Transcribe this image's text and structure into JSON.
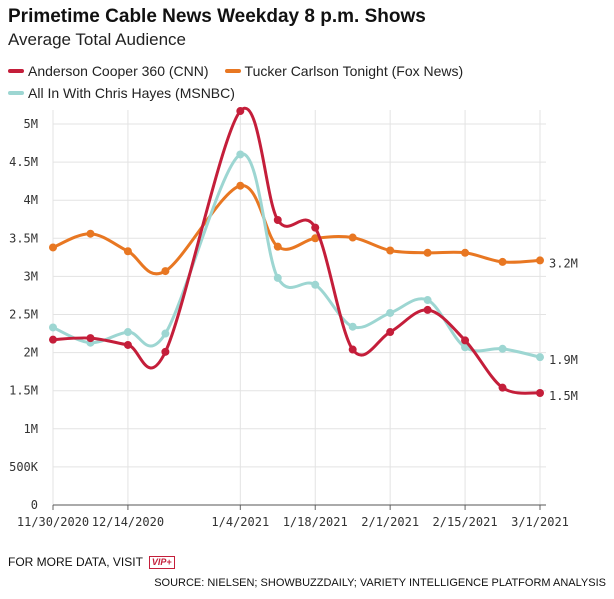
{
  "header": {
    "title": "Primetime Cable News Weekday 8 p.m. Shows",
    "subtitle": "Average Total Audience"
  },
  "legend": [
    {
      "label": "Anderson Cooper 360 (CNN)",
      "color": "#c41e3a"
    },
    {
      "label": "Tucker Carlson Tonight (Fox News)",
      "color": "#e87722"
    },
    {
      "label": "All In With Chris Hayes (MSNBC)",
      "color": "#9dd6d2"
    }
  ],
  "footer": {
    "more_data": "FOR MORE DATA, VISIT",
    "badge": "VIP+",
    "source": "SOURCE: NIELSEN; SHOWBUZZDAILY; VARIETY INTELLIGENCE PLATFORM ANALYSIS"
  },
  "chart_data": {
    "type": "line",
    "x": [
      "2020-11-30",
      "2020-12-07",
      "2020-12-14",
      "2020-12-21",
      "2021-01-04",
      "2021-01-11",
      "2021-01-18",
      "2021-01-25",
      "2021-02-01",
      "2021-02-08",
      "2021-02-15",
      "2021-02-22",
      "2021-03-01"
    ],
    "x_ticks": [
      "11/30/2020",
      "12/14/2020",
      "1/4/2021",
      "1/18/2021",
      "2/1/2021",
      "2/15/2021",
      "3/1/2021"
    ],
    "y_ticks": [
      "0",
      "500K",
      "1M",
      "1.5M",
      "2M",
      "2.5M",
      "3M",
      "3.5M",
      "4M",
      "4.5M",
      "5M"
    ],
    "ylim": [
      0,
      5000000
    ],
    "grid": true,
    "legend_position": "top",
    "series": [
      {
        "name": "Anderson Cooper 360 (CNN)",
        "color": "#c41e3a",
        "values": [
          2170000,
          2190000,
          2100000,
          2010000,
          5170000,
          3740000,
          3640000,
          2040000,
          2270000,
          2560000,
          2160000,
          1540000,
          1470000
        ],
        "end_label": "1.5M"
      },
      {
        "name": "Tucker Carlson Tonight (Fox News)",
        "color": "#e87722",
        "values": [
          3380000,
          3560000,
          3330000,
          3070000,
          4190000,
          3390000,
          3500000,
          3510000,
          3340000,
          3310000,
          3310000,
          3190000,
          3210000
        ],
        "end_label": "3.2M"
      },
      {
        "name": "All In With Chris Hayes (MSNBC)",
        "color": "#9dd6d2",
        "values": [
          2330000,
          2130000,
          2270000,
          2250000,
          4600000,
          2980000,
          2890000,
          2340000,
          2520000,
          2690000,
          2070000,
          2050000,
          1940000
        ],
        "end_label": "1.9M"
      }
    ]
  }
}
